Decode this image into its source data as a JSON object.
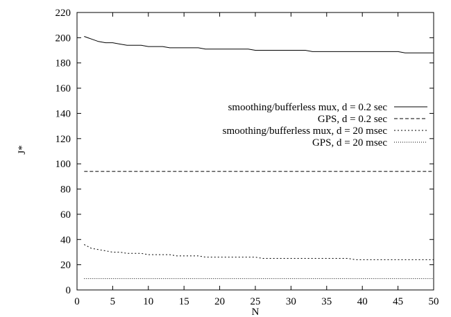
{
  "chart_data": {
    "type": "line",
    "xlabel": "N",
    "ylabel": "J*",
    "xlim": [
      0,
      50
    ],
    "ylim": [
      0,
      220
    ],
    "xticks": [
      0,
      5,
      10,
      15,
      20,
      25,
      30,
      35,
      40,
      45,
      50
    ],
    "yticks": [
      0,
      20,
      40,
      60,
      80,
      100,
      120,
      140,
      160,
      180,
      200,
      220
    ],
    "grid": false,
    "legend_position": "right, upper-middle",
    "series": [
      {
        "name": "smoothing/bufferless mux, d = 0.2 sec",
        "style": "solid",
        "x": [
          1,
          2,
          3,
          4,
          5,
          6,
          7,
          8,
          9,
          10,
          11,
          12,
          13,
          14,
          15,
          16,
          17,
          18,
          19,
          20,
          21,
          22,
          23,
          24,
          25,
          26,
          27,
          28,
          29,
          30,
          31,
          32,
          33,
          34,
          35,
          36,
          37,
          38,
          39,
          40,
          41,
          42,
          43,
          44,
          45,
          46,
          47,
          48,
          49,
          50
        ],
        "y": [
          201,
          199,
          197,
          196,
          196,
          195,
          194,
          194,
          194,
          193,
          193,
          193,
          192,
          192,
          192,
          192,
          192,
          191,
          191,
          191,
          191,
          191,
          191,
          191,
          190,
          190,
          190,
          190,
          190,
          190,
          190,
          190,
          189,
          189,
          189,
          189,
          189,
          189,
          189,
          189,
          189,
          189,
          189,
          189,
          189,
          188,
          188,
          188,
          188,
          188
        ]
      },
      {
        "name": "GPS, d = 0.2 sec",
        "style": "dashed",
        "x": [
          1,
          50
        ],
        "y": [
          94,
          94
        ]
      },
      {
        "name": "smoothing/bufferless mux, d = 20 msec",
        "style": "dotted",
        "x": [
          1,
          2,
          3,
          4,
          5,
          6,
          7,
          8,
          9,
          10,
          11,
          12,
          13,
          14,
          15,
          16,
          17,
          18,
          19,
          20,
          21,
          22,
          23,
          24,
          25,
          26,
          27,
          28,
          29,
          30,
          31,
          32,
          33,
          34,
          35,
          36,
          37,
          38,
          39,
          40,
          41,
          42,
          43,
          44,
          45,
          46,
          47,
          48,
          49,
          50
        ],
        "y": [
          36,
          33,
          32,
          31,
          30,
          30,
          29,
          29,
          29,
          28,
          28,
          28,
          28,
          27,
          27,
          27,
          27,
          26,
          26,
          26,
          26,
          26,
          26,
          26,
          26,
          25,
          25,
          25,
          25,
          25,
          25,
          25,
          25,
          25,
          25,
          25,
          25,
          25,
          24,
          24,
          24,
          24,
          24,
          24,
          24,
          24,
          24,
          24,
          24,
          24
        ]
      },
      {
        "name": "GPS, d = 20 msec",
        "style": "fine-dotted",
        "x": [
          1,
          50
        ],
        "y": [
          9,
          9
        ]
      }
    ]
  }
}
